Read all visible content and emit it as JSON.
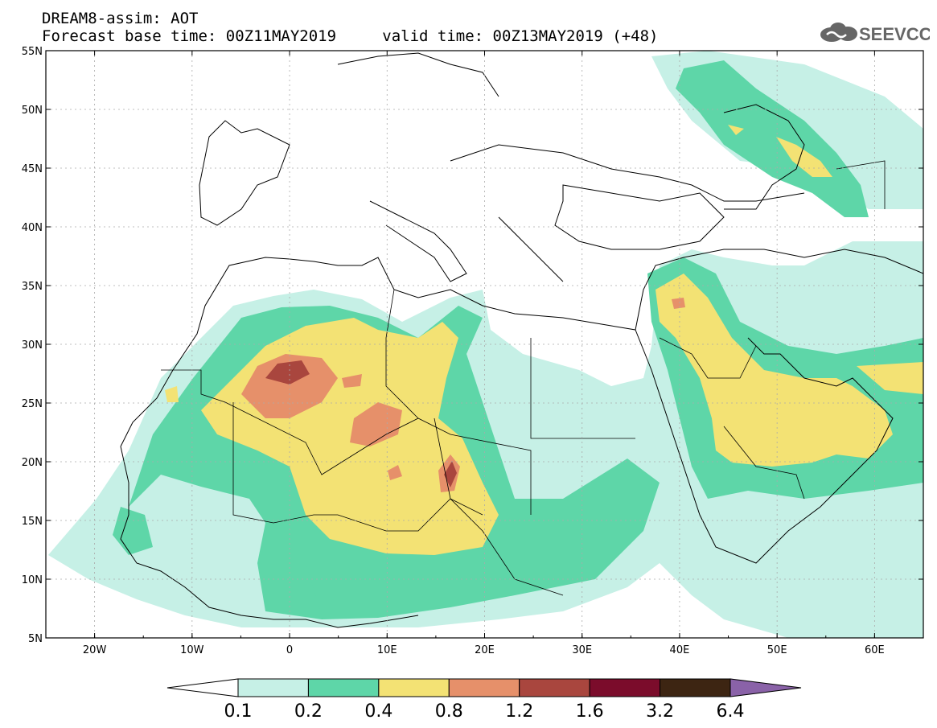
{
  "title": {
    "line1": "DREAM8-assim: AOT",
    "base_label": "Forecast base time: ",
    "base_time": "00Z11MAY2019",
    "valid_label": "valid time: ",
    "valid_time": "00Z13MAY2019",
    "lead": "(+48)"
  },
  "logo": {
    "text": "SEEVCCC",
    "icon": "cloud-icon"
  },
  "map": {
    "variable": "AOT",
    "lat_range": [
      5,
      55
    ],
    "lon_range": [
      -25,
      65
    ],
    "lat_ticks": [
      "55N",
      "50N",
      "45N",
      "40N",
      "35N",
      "30N",
      "25N",
      "20N",
      "15N",
      "10N",
      "5N"
    ],
    "lon_ticks": [
      "20W",
      "10W",
      "0",
      "10E",
      "20E",
      "30E",
      "40E",
      "50E",
      "60E"
    ],
    "grid": true
  },
  "colorbar": {
    "levels": [
      "0.1",
      "0.2",
      "0.4",
      "0.8",
      "1.2",
      "1.6",
      "3.2",
      "6.4"
    ],
    "colors": [
      "#ffffff",
      "#c6f0e6",
      "#5ed6a8",
      "#f3e274",
      "#e6906a",
      "#a9463e",
      "#7b0c2b",
      "#3d2512",
      "#8a62a8"
    ]
  }
}
